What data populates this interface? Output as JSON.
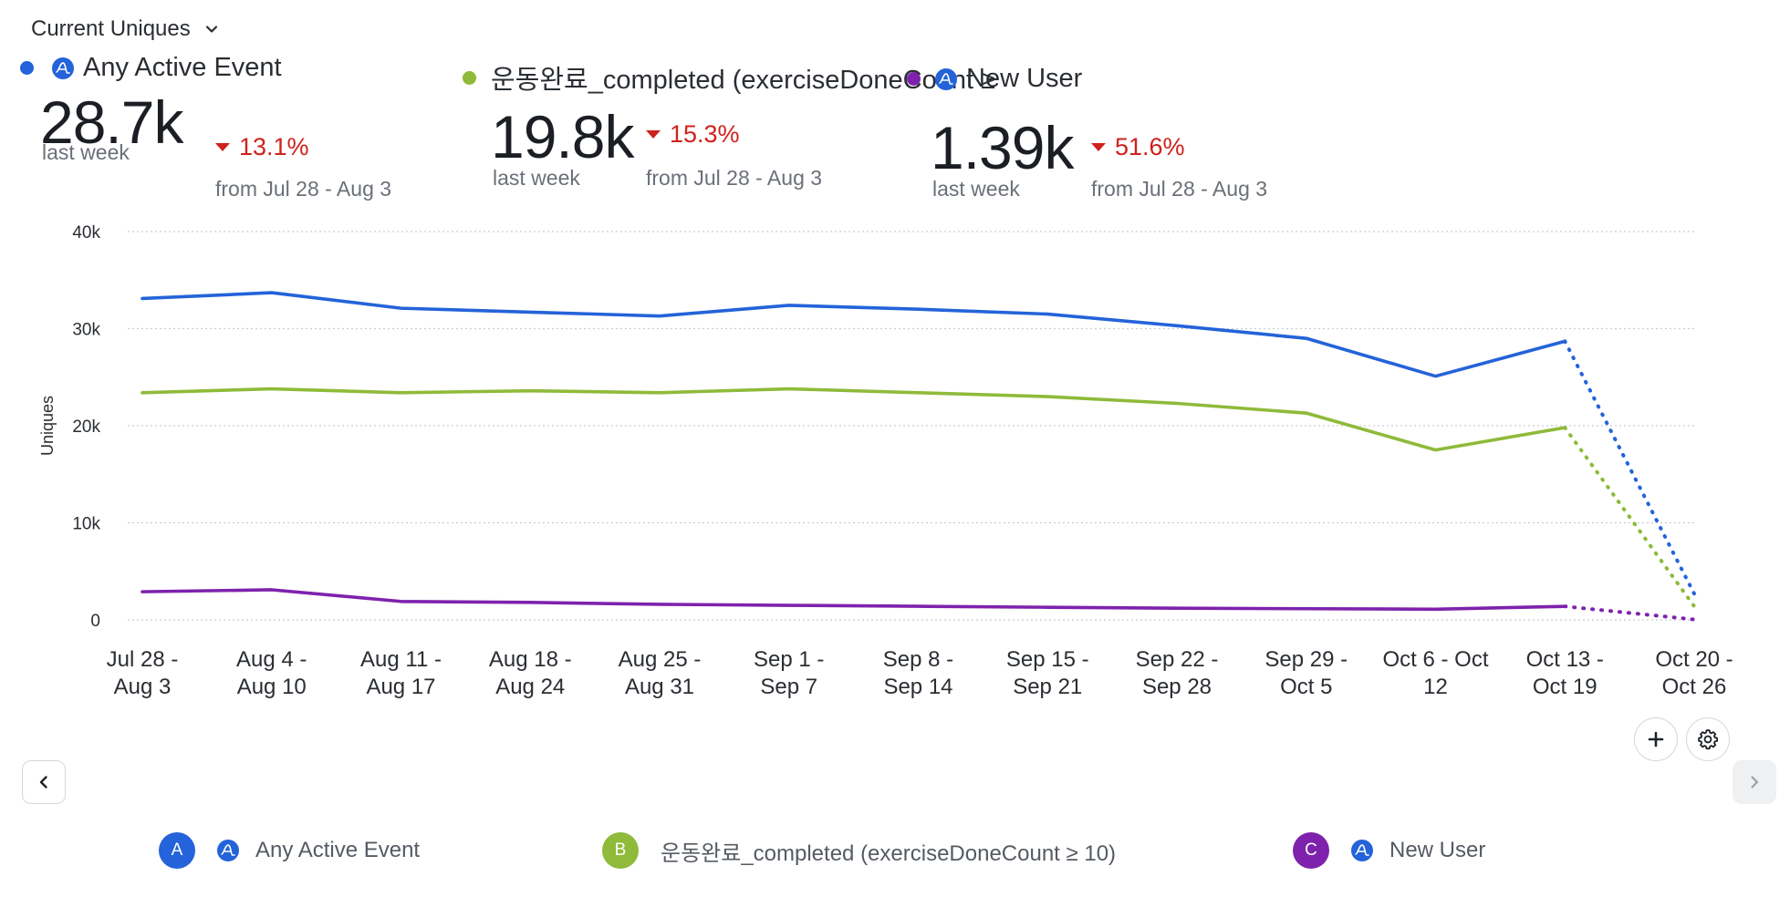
{
  "metric_selector": {
    "label": "Current Uniques"
  },
  "series": [
    {
      "key": "A",
      "name": "Any Active Event",
      "color": "#2463d9",
      "value": "28.7k",
      "period": "last week",
      "delta": "13.1%",
      "delta_direction": "down",
      "compare": "from Jul 28 - Aug 3"
    },
    {
      "key": "B",
      "name": "운동완료_completed (exerciseDoneCount ≥",
      "color": "#8fba3a",
      "value": "19.8k",
      "period": "last week",
      "delta": "15.3%",
      "delta_direction": "down",
      "compare": "from Jul 28 - Aug 3"
    },
    {
      "key": "C",
      "name": "New User",
      "color": "#7e22ad",
      "value": "1.39k",
      "period": "last week",
      "delta": "51.6%",
      "delta_direction": "down",
      "compare": "from Jul 28 - Aug 3"
    }
  ],
  "legend": [
    {
      "badge": "A",
      "label": "Any Active Event",
      "color": "#2463d9"
    },
    {
      "badge": "B",
      "label": "운동완료_completed (exerciseDoneCount ≥ 10)",
      "color": "#8fba3a"
    },
    {
      "badge": "C",
      "label": "New User",
      "color": "#7e22ad"
    }
  ],
  "chart_data": {
    "type": "line",
    "ylabel": "Uniques",
    "xlabel": "",
    "ylim": [
      0,
      40000
    ],
    "yticks": [
      {
        "value": 0,
        "label": "0"
      },
      {
        "value": 10000,
        "label": "10k"
      },
      {
        "value": 20000,
        "label": "20k"
      },
      {
        "value": 30000,
        "label": "30k"
      },
      {
        "value": 40000,
        "label": "40k"
      }
    ],
    "grid": true,
    "categories": [
      [
        "Jul 28 -",
        "Aug 3"
      ],
      [
        "Aug 4 -",
        "Aug 10"
      ],
      [
        "Aug 11 -",
        "Aug 17"
      ],
      [
        "Aug 18 -",
        "Aug 24"
      ],
      [
        "Aug 25 -",
        "Aug 31"
      ],
      [
        "Sep 1 -",
        "Sep 7"
      ],
      [
        "Sep 8 -",
        "Sep 14"
      ],
      [
        "Sep 15 -",
        "Sep 21"
      ],
      [
        "Sep 22 -",
        "Sep 28"
      ],
      [
        "Sep 29 -",
        "Oct 5"
      ],
      [
        "Oct 6 - Oct",
        "12"
      ],
      [
        "Oct 13 -",
        "Oct 19"
      ],
      [
        "Oct 20 -",
        "Oct 26"
      ]
    ],
    "incomplete_from_index": 11,
    "series": [
      {
        "name": "Any Active Event",
        "color": "#2463d9",
        "values": [
          33100,
          33700,
          32100,
          31700,
          31300,
          32400,
          32000,
          31500,
          30300,
          29000,
          25100,
          28700,
          2700
        ]
      },
      {
        "name": "운동완료_completed (exerciseDoneCount ≥ 10)",
        "color": "#8fba3a",
        "values": [
          23400,
          23800,
          23400,
          23600,
          23400,
          23800,
          23400,
          23000,
          22300,
          21300,
          17500,
          19800,
          1400
        ]
      },
      {
        "name": "New User",
        "color": "#7e22ad",
        "values": [
          2900,
          3100,
          1900,
          1800,
          1600,
          1500,
          1400,
          1300,
          1200,
          1150,
          1100,
          1390,
          40
        ]
      }
    ]
  }
}
